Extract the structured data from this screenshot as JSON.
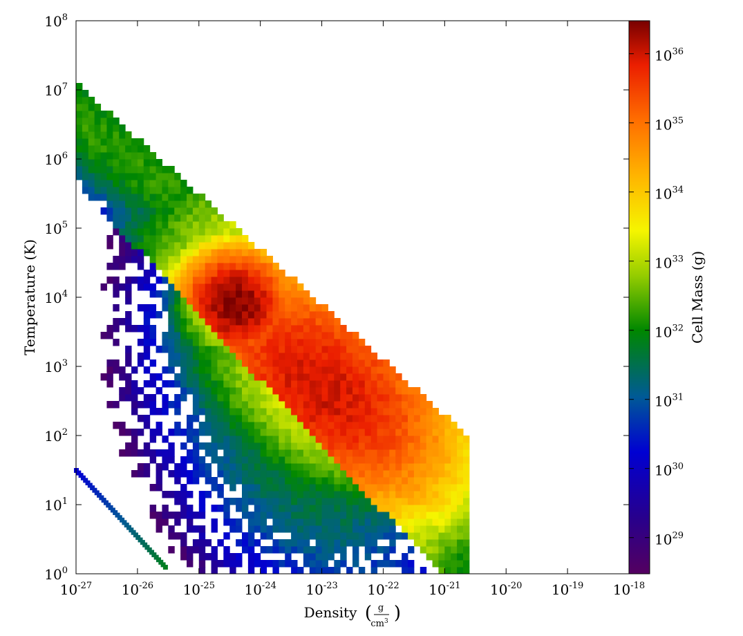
{
  "chart_data": {
    "type": "heatmap",
    "title": "",
    "xlabel": "Density",
    "xunit_num": "g",
    "xunit_den": "cm",
    "xunit_den_exp": "3",
    "ylabel": "Temperature  (K)",
    "colorbar_label": "Cell Mass  (g)",
    "x_scale": "log",
    "y_scale": "log",
    "color_scale": "log",
    "colormap": "spectral (purple-blue-green-yellow-orange-red-darkred)",
    "grid": false,
    "xlim": [
      "1e-27",
      "1e-18"
    ],
    "ylim": [
      "1e0",
      "1e8"
    ],
    "clim": [
      "3e28",
      "3e36"
    ],
    "x_ticks": [
      {
        "base": "10",
        "exp": "-27"
      },
      {
        "base": "10",
        "exp": "-26"
      },
      {
        "base": "10",
        "exp": "-25"
      },
      {
        "base": "10",
        "exp": "-24"
      },
      {
        "base": "10",
        "exp": "-23"
      },
      {
        "base": "10",
        "exp": "-22"
      },
      {
        "base": "10",
        "exp": "-21"
      },
      {
        "base": "10",
        "exp": "-20"
      },
      {
        "base": "10",
        "exp": "-19"
      },
      {
        "base": "10",
        "exp": "-18"
      }
    ],
    "y_ticks": [
      {
        "base": "10",
        "exp": "0"
      },
      {
        "base": "10",
        "exp": "1"
      },
      {
        "base": "10",
        "exp": "2"
      },
      {
        "base": "10",
        "exp": "3"
      },
      {
        "base": "10",
        "exp": "4"
      },
      {
        "base": "10",
        "exp": "5"
      },
      {
        "base": "10",
        "exp": "6"
      },
      {
        "base": "10",
        "exp": "7"
      },
      {
        "base": "10",
        "exp": "8"
      }
    ],
    "colorbar_ticks": [
      {
        "base": "10",
        "exp": "29"
      },
      {
        "base": "10",
        "exp": "30"
      },
      {
        "base": "10",
        "exp": "31"
      },
      {
        "base": "10",
        "exp": "32"
      },
      {
        "base": "10",
        "exp": "33"
      },
      {
        "base": "10",
        "exp": "34"
      },
      {
        "base": "10",
        "exp": "35"
      },
      {
        "base": "10",
        "exp": "36"
      }
    ],
    "distribution_components": [
      {
        "name": "main",
        "log_x_center": -23.0,
        "log_y_center": 2.7,
        "log_mass_peak": 36.0
      },
      {
        "name": "warm",
        "log_x_center": -24.4,
        "log_y_center": 3.9,
        "log_mass_peak": 36.4
      },
      {
        "name": "hot-diagonal",
        "log_x_from": -27.0,
        "log_y_from": 6.6,
        "log_x_to": -24.6,
        "log_y_to": 5.0,
        "log_mass": 31.5
      },
      {
        "name": "cold-diagonal",
        "log_x_from": -27.0,
        "log_y_from": 1.5,
        "log_x_to": -25.5,
        "log_y_to": 0.1,
        "log_mass": 31.0
      }
    ]
  }
}
